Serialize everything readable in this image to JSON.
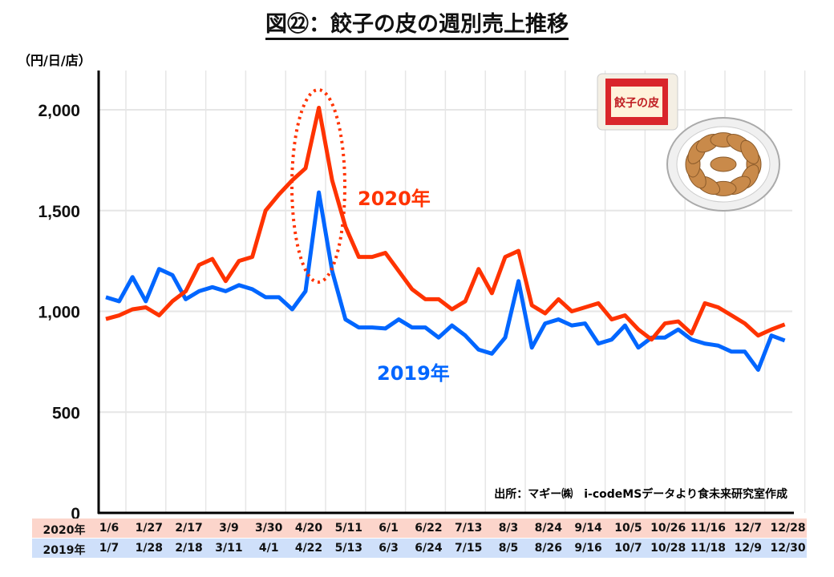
{
  "title": "図㉒：餃子の皮の週別売上推移",
  "unit": "（円/日/店）",
  "source": "出所：マギー㈱　i-codeMSデータより食未来研究室作成",
  "package_text": "餃子の皮",
  "chart_data": {
    "type": "line",
    "title": "図㉒：餃子の皮の週別売上推移",
    "ylabel": "（円/日/店）",
    "ylim": [
      0,
      2200
    ],
    "yticks": [
      "0",
      "500",
      "1,000",
      "1,500",
      "2,000"
    ],
    "ytick_values": [
      0,
      500,
      1000,
      1500,
      2000
    ],
    "grid": true,
    "row_labels": {
      "2020": "2020年",
      "2019": "2019年"
    },
    "xlabels_2020": [
      "1/6",
      "1/27",
      "2/17",
      "3/9",
      "3/30",
      "4/20",
      "5/11",
      "6/1",
      "6/22",
      "7/13",
      "8/3",
      "8/24",
      "9/14",
      "10/5",
      "10/26",
      "11/16",
      "12/7",
      "12/28"
    ],
    "xlabels_2019": [
      "1/7",
      "1/28",
      "2/18",
      "3/11",
      "4/1",
      "4/22",
      "5/13",
      "6/3",
      "6/24",
      "7/15",
      "8/5",
      "8/26",
      "9/16",
      "10/7",
      "10/28",
      "11/18",
      "12/9",
      "12/30"
    ],
    "series": [
      {
        "name": "2020年",
        "color": "#ff3300",
        "values": [
          962,
          980,
          1010,
          1020,
          980,
          1050,
          1100,
          1230,
          1260,
          1150,
          1250,
          1270,
          1500,
          1580,
          1650,
          1710,
          2010,
          1650,
          1420,
          1270,
          1270,
          1290,
          1200,
          1110,
          1060,
          1060,
          1010,
          1050,
          1210,
          1090,
          1270,
          1300,
          1030,
          990,
          1060,
          1000,
          1020,
          1040,
          960,
          980,
          910,
          860,
          940,
          950,
          890,
          1040,
          1020,
          980,
          940,
          880,
          910,
          935
        ]
      },
      {
        "name": "2019年",
        "color": "#0066ff",
        "values": [
          1070,
          1050,
          1170,
          1050,
          1210,
          1180,
          1060,
          1100,
          1120,
          1100,
          1130,
          1110,
          1070,
          1070,
          1010,
          1100,
          1590,
          1200,
          960,
          920,
          920,
          915,
          960,
          920,
          920,
          870,
          930,
          880,
          810,
          790,
          870,
          1150,
          820,
          940,
          960,
          930,
          940,
          840,
          860,
          930,
          820,
          870,
          870,
          910,
          860,
          840,
          830,
          800,
          800,
          710,
          880,
          855
        ]
      }
    ]
  }
}
